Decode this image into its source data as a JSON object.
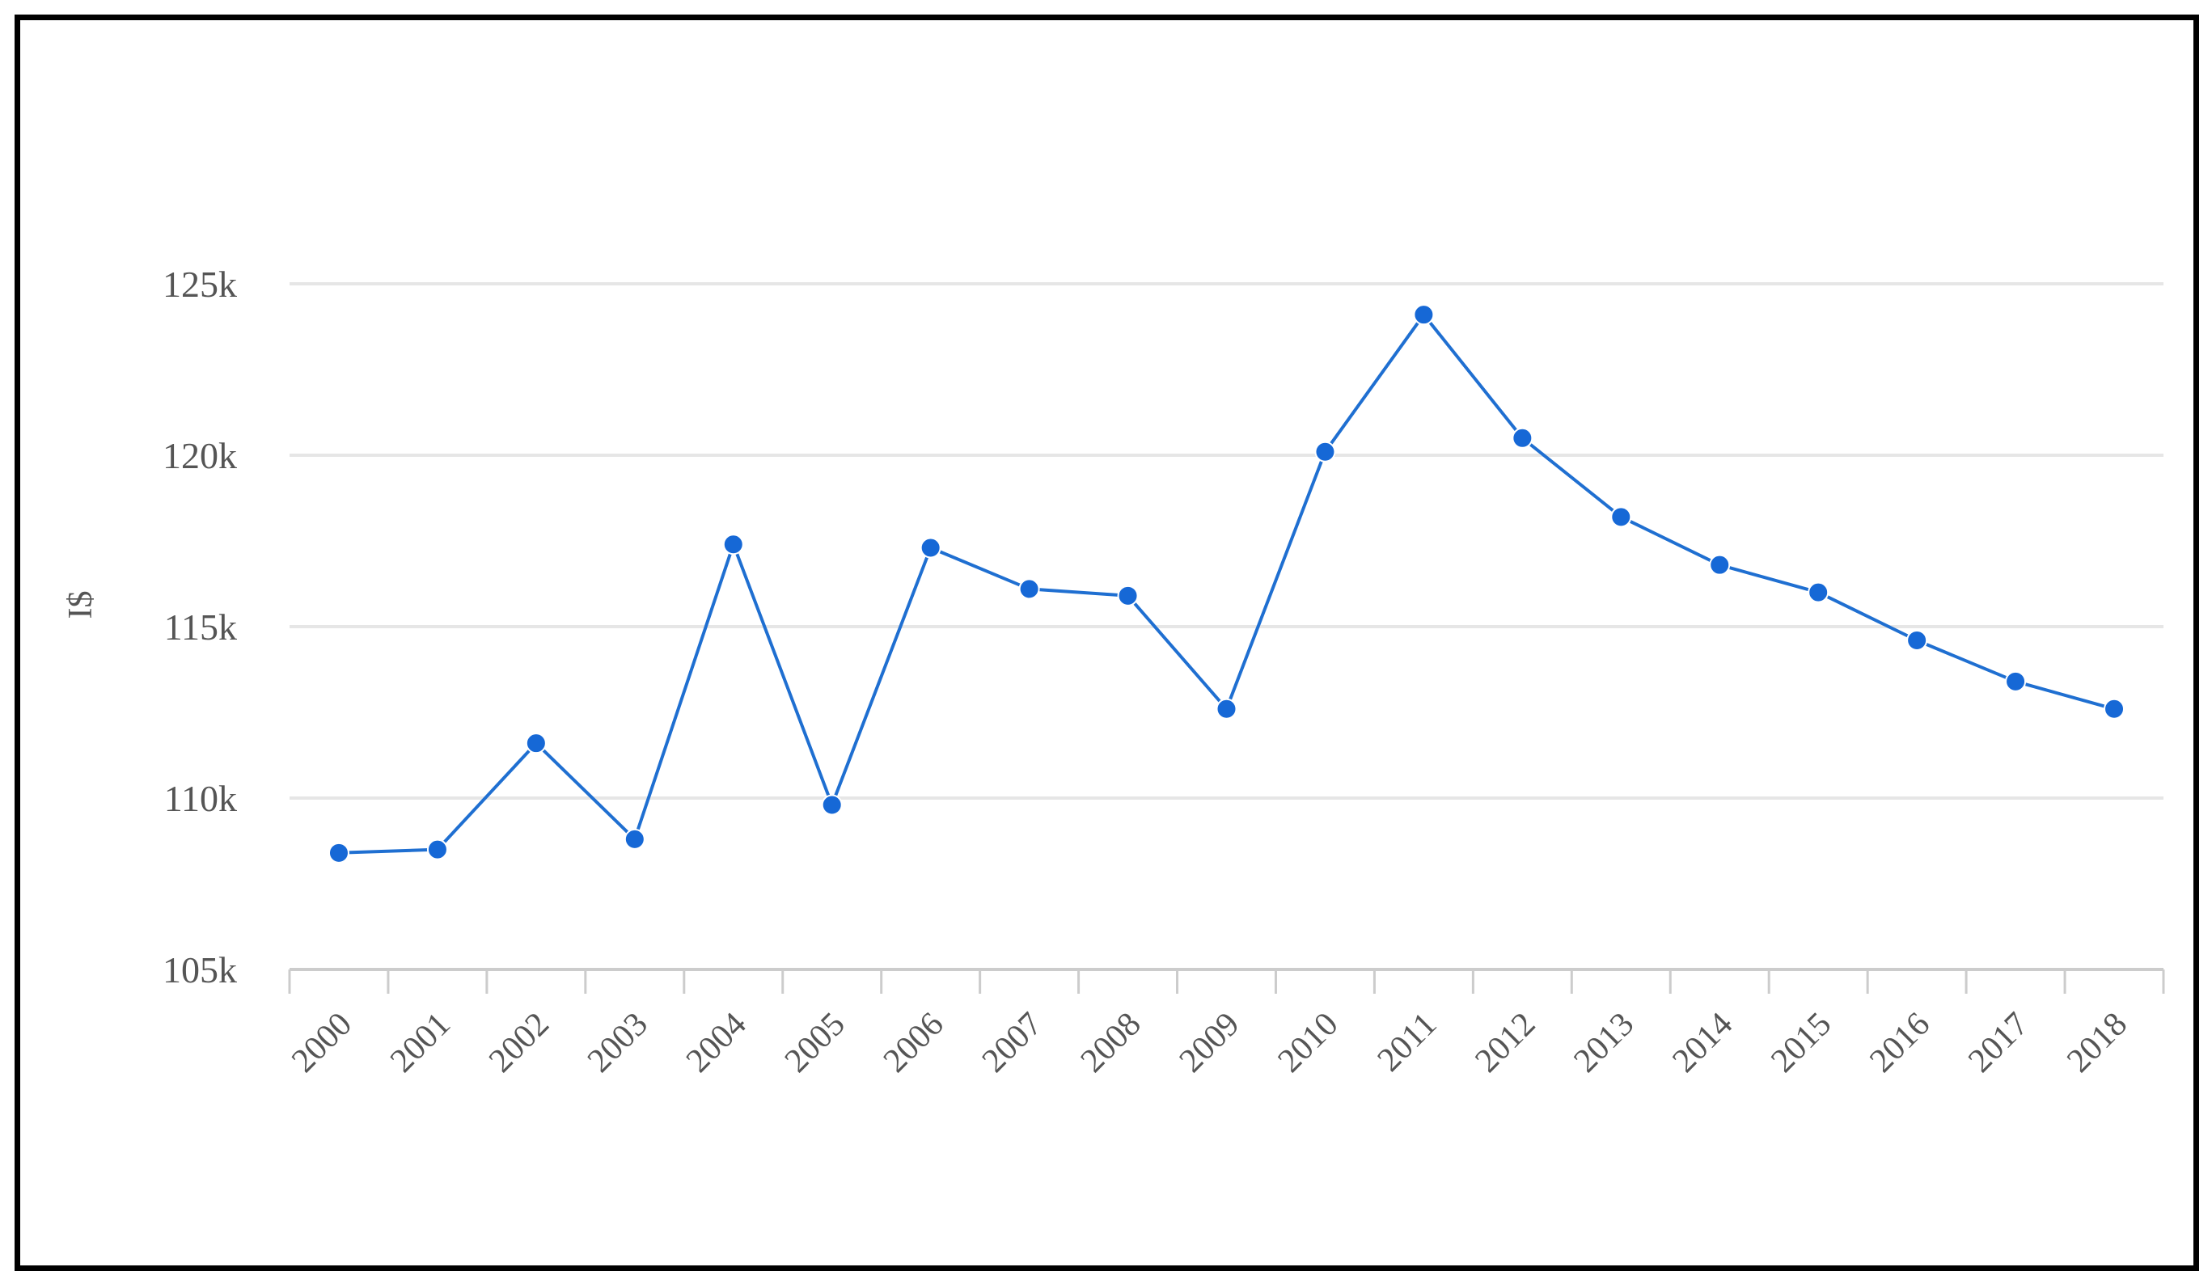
{
  "chart_data": {
    "type": "line",
    "title": "",
    "xlabel": "",
    "ylabel": "I$",
    "categories": [
      "2000",
      "2001",
      "2002",
      "2003",
      "2004",
      "2005",
      "2006",
      "2007",
      "2008",
      "2009",
      "2010",
      "2011",
      "2012",
      "2013",
      "2014",
      "2015",
      "2016",
      "2017",
      "2018"
    ],
    "series": [
      {
        "values": [
          108400,
          108500,
          111600,
          108800,
          117400,
          109800,
          117300,
          116100,
          115900,
          112600,
          120100,
          124100,
          120500,
          118200,
          116800,
          116000,
          114600,
          113400,
          112600
        ]
      }
    ],
    "yticks": [
      "105k",
      "110k",
      "115k",
      "120k",
      "125k"
    ],
    "ylim": [
      105000,
      127500
    ],
    "grid": true,
    "legend": "none",
    "colors": {
      "line": "#1f6fd1",
      "marker": "#1668d6",
      "grid": "#e6e6e6",
      "axis": "#cccccc"
    }
  }
}
